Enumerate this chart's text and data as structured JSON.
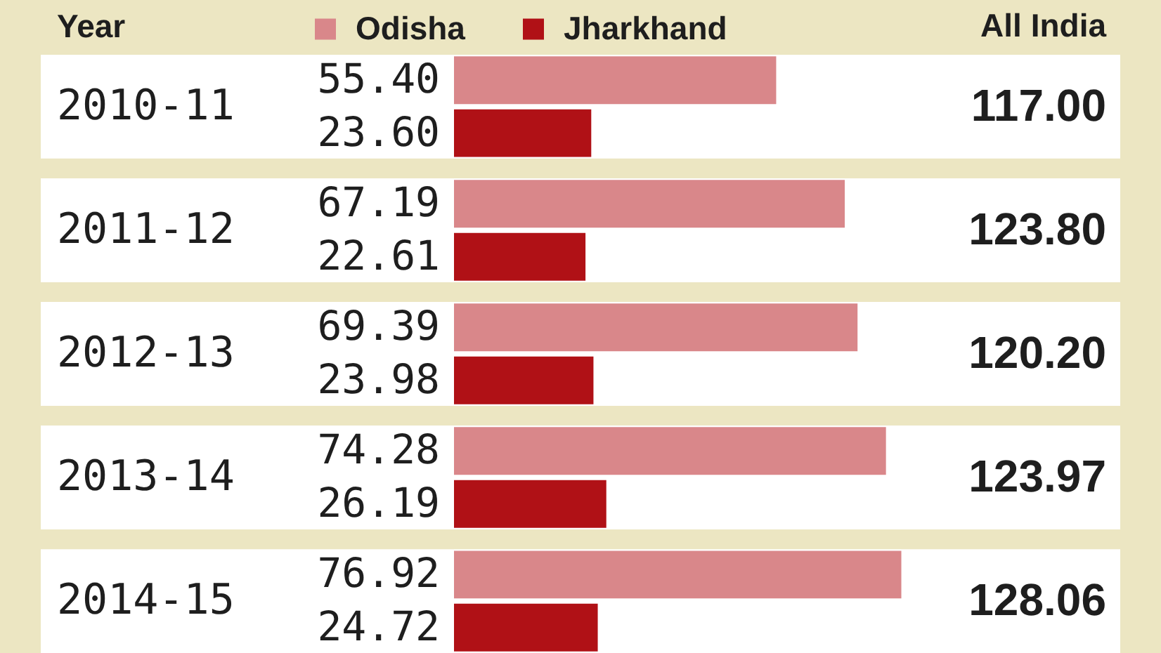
{
  "chart_data": [
    {
      "type": "bar",
      "orientation": "horizontal",
      "ylabel": "Year",
      "categories": [
        "2010-11",
        "2011-12",
        "2012-13",
        "2013-14",
        "2014-15"
      ],
      "series": [
        {
          "name": "Odisha",
          "color": "#d9878a",
          "values": [
            55.4,
            67.19,
            69.39,
            74.28,
            76.92
          ],
          "value_labels": [
            "55.40",
            "67.19",
            "69.39",
            "74.28",
            "76.92"
          ]
        },
        {
          "name": "Jharkhand",
          "color": "#b01116",
          "values": [
            23.6,
            22.61,
            23.98,
            26.19,
            24.72
          ],
          "value_labels": [
            "23.60",
            "22.61",
            "23.98",
            "26.19",
            "24.72"
          ]
        }
      ],
      "legend": "top",
      "tick_labels": "y"
    },
    {
      "type": "other",
      "title": "All India",
      "annotations": [
        "117.00",
        "123.80",
        "120.20",
        "123.97",
        "128.06"
      ]
    }
  ]
}
